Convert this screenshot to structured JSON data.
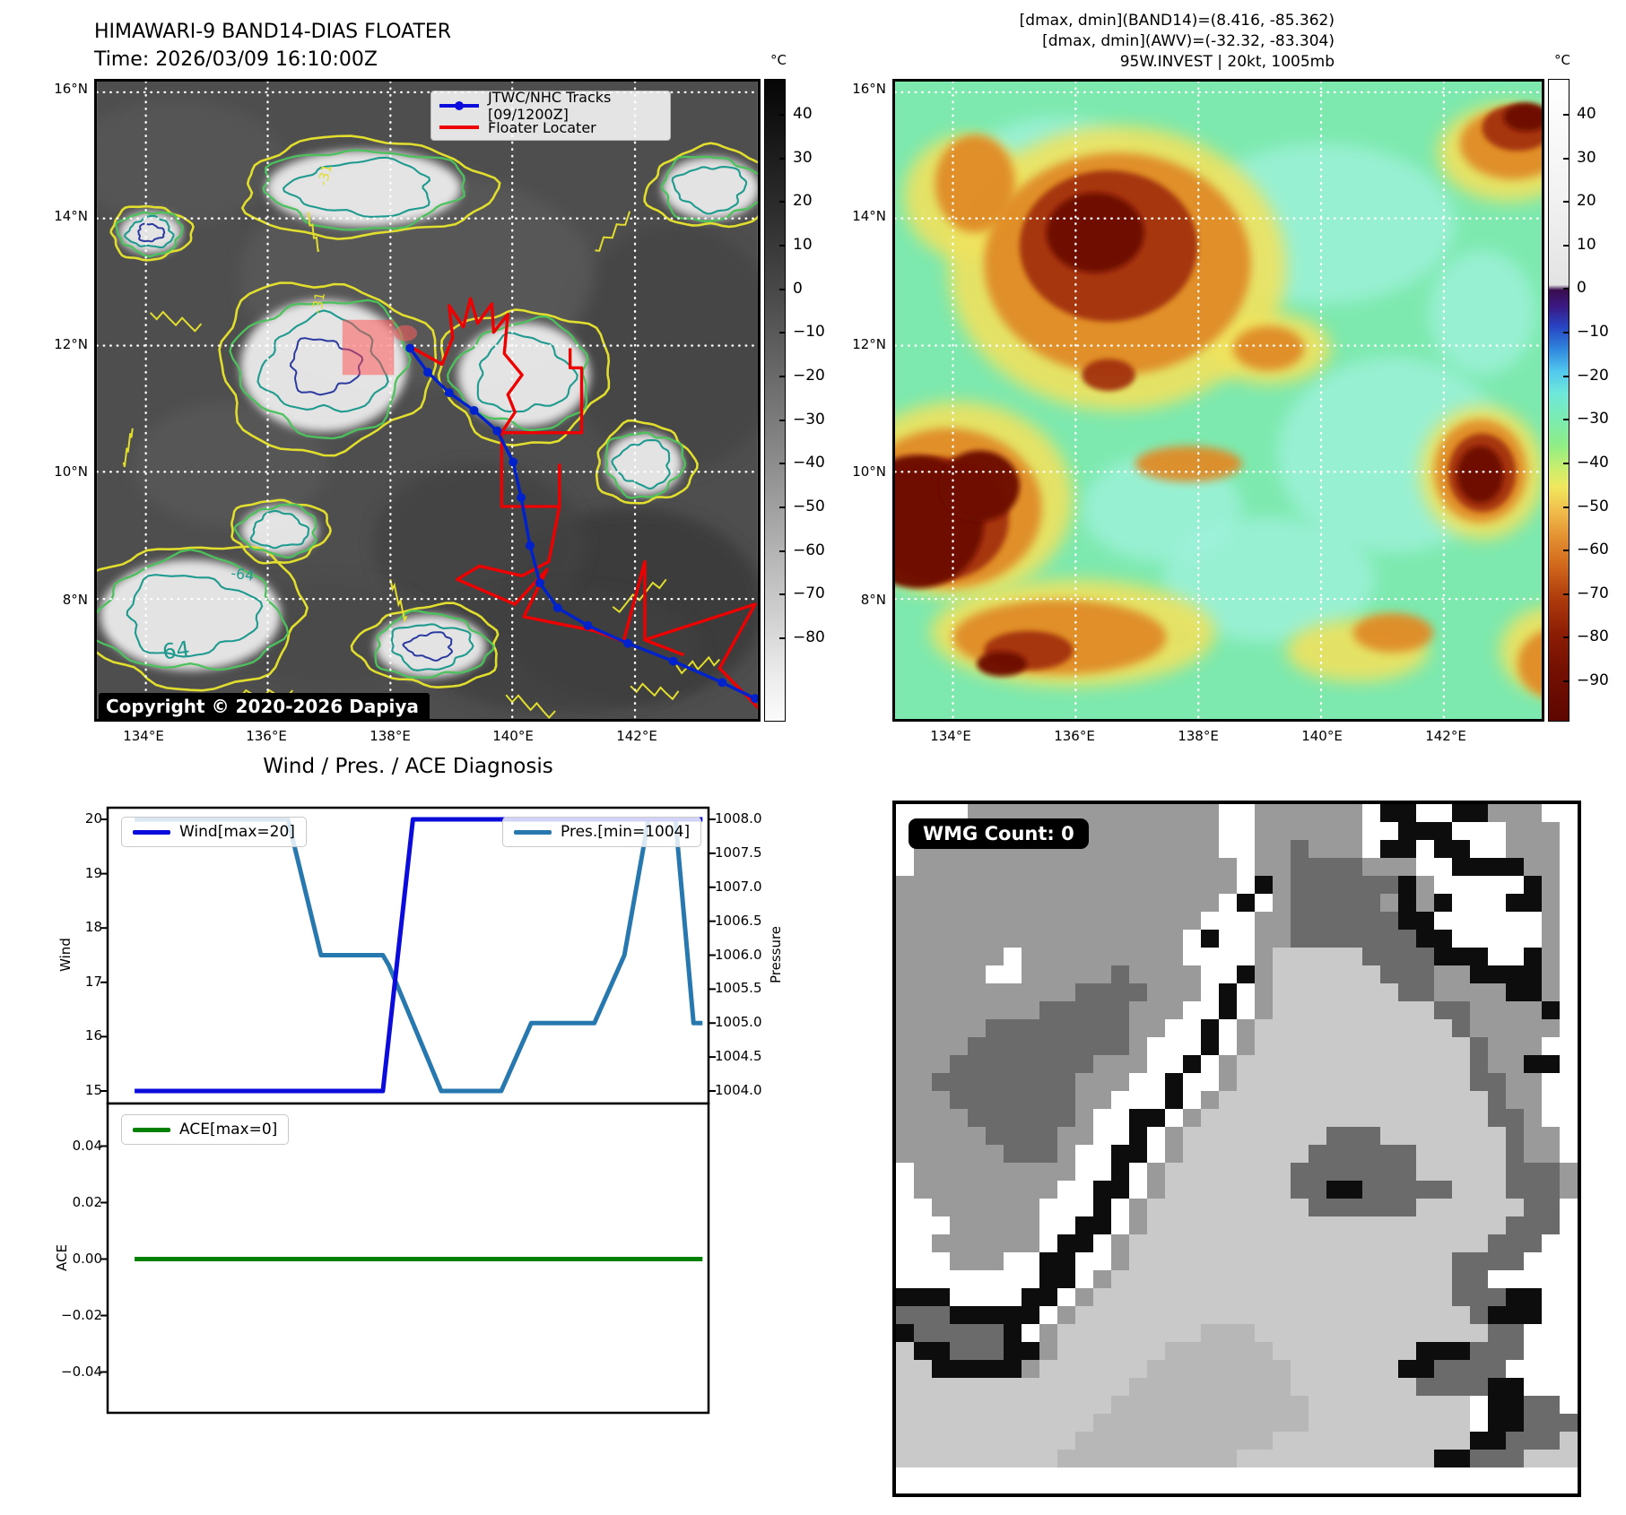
{
  "header": {
    "title": "HIMAWARI-9 BAND14-DIAS FLOATER",
    "time": "Time: 2026/03/09 16:10:00Z",
    "right_lines": [
      "[dmax, dmin](BAND14)=(8.416, -85.362)",
      "[dmax, dmin](AWV)=(-32.32, -83.304)",
      "95W.INVEST | 20kt, 1005mb"
    ]
  },
  "left_map": {
    "legend": [
      {
        "label": "JTWC/NHC Tracks [09/1200Z]",
        "color": "#0022cc",
        "marker": true
      },
      {
        "label": "Floater Locater",
        "color": "#ee0000",
        "marker": false
      }
    ],
    "copyright": "Copyright © 2020-2026 Dapiya",
    "lat_labels": [
      "16°N",
      "14°N",
      "12°N",
      "10°N",
      "8°N"
    ],
    "lon_labels": [
      "134°E",
      "136°E",
      "138°E",
      "140°E",
      "142°E"
    ],
    "contour_labels": [
      {
        "text": "-31"
      },
      {
        "text": "-31"
      },
      {
        "text": "-64"
      },
      {
        "text": "64"
      }
    ],
    "colorbar": {
      "unit": "°C",
      "tick_labels": [
        "40",
        "30",
        "20",
        "10",
        "0",
        "−10",
        "−20",
        "−30",
        "−40",
        "−50",
        "−60",
        "−70",
        "−80"
      ]
    }
  },
  "right_map": {
    "lat_labels": [
      "16°N",
      "14°N",
      "12°N",
      "10°N",
      "8°N"
    ],
    "lon_labels": [
      "134°E",
      "136°E",
      "138°E",
      "140°E",
      "142°E"
    ],
    "colorbar": {
      "unit": "°C",
      "tick_labels": [
        "40",
        "30",
        "20",
        "10",
        "0",
        "−10",
        "−20",
        "−30",
        "−40",
        "−50",
        "−60",
        "−70",
        "−80",
        "−90"
      ]
    }
  },
  "diagnosis": {
    "title": "Wind / Pres. / ACE Diagnosis",
    "wind_legend": "Wind[max=20]",
    "pres_legend": "Pres.[min=1004]",
    "ace_legend": "ACE[max=0]",
    "wind_axis": {
      "label": "Wind",
      "tick_values": [
        15,
        16,
        17,
        18,
        19,
        20
      ],
      "tick_labels": [
        "15",
        "16",
        "17",
        "18",
        "19",
        "20"
      ]
    },
    "pressure_axis": {
      "label": "Pressure",
      "tick_values": [
        1004,
        1004.5,
        1005,
        1005.5,
        1006,
        1006.5,
        1007,
        1007.5,
        1008
      ],
      "tick_labels": [
        "1004.0",
        "1004.5",
        "1005.0",
        "1005.5",
        "1006.0",
        "1006.5",
        "1007.0",
        "1007.5",
        "1008.0"
      ]
    },
    "ace_axis": {
      "label": "ACE",
      "tick_values": [
        -0.04,
        -0.02,
        0,
        0.02,
        0.04
      ],
      "tick_labels": [
        "−0.04",
        "−0.02",
        "0.00",
        "0.02",
        "0.04"
      ]
    }
  },
  "chart_data": [
    {
      "type": "line",
      "title": "Wind / Pres. / ACE Diagnosis",
      "ylabel": "Wind",
      "y2label": "Pressure",
      "ylim": [
        14.78,
        20.22
      ],
      "y2lim": [
        1003.82,
        1008.18
      ],
      "yticks": [
        15,
        16,
        17,
        18,
        19,
        20
      ],
      "y2ticks": [
        1004,
        1004.5,
        1005,
        1005.5,
        1006,
        1006.5,
        1007,
        1007.5,
        1008
      ],
      "grid": false,
      "legend_position": "top",
      "series": [
        {
          "name": "Wind[max=20]",
          "axis": "left",
          "color": "#0b0bdc",
          "points": [
            [
              0.045,
              15
            ],
            [
              0.458,
              15
            ],
            [
              0.508,
              20
            ],
            [
              0.99,
              20
            ]
          ]
        },
        {
          "name": "Pres.[min=1004]",
          "axis": "right",
          "color": "#2878b0",
          "points": [
            [
              0.045,
              1008
            ],
            [
              0.3,
              1008
            ],
            [
              0.355,
              1006
            ],
            [
              0.458,
              1006
            ],
            [
              0.468,
              1005.85
            ],
            [
              0.555,
              1004
            ],
            [
              0.655,
              1004
            ],
            [
              0.705,
              1005
            ],
            [
              0.81,
              1005
            ],
            [
              0.86,
              1006
            ],
            [
              0.9,
              1008
            ],
            [
              0.945,
              1008
            ],
            [
              0.975,
              1005
            ],
            [
              0.99,
              1005
            ]
          ]
        }
      ]
    },
    {
      "type": "line",
      "ylabel": "ACE",
      "ylim": [
        -0.0551,
        0.0551
      ],
      "yticks": [
        -0.04,
        -0.02,
        0,
        0.02,
        0.04
      ],
      "grid": false,
      "series": [
        {
          "name": "ACE[max=0]",
          "color": "#008000",
          "points": [
            [
              0.045,
              0
            ],
            [
              0.99,
              0
            ]
          ]
        }
      ]
    }
  ],
  "wmg": {
    "badge": "WMG Count: 0",
    "palette": {
      ".": "#ffffff",
      "g": "#9a9a9a",
      "d": "#6b6b6b",
      "k": "#0d0d0d",
      "l": "#c9c9c9",
      "m": "#b7b7b7",
      "s": "#888888",
      "e": "#dedede"
    },
    "rows": [
      "....gggggggggggggg..gggggg.kk..kkggg..",
      "..gggggggggggggggg..gggggg..kkk...ggg.",
      ".ggggggggggggggggg..ggdggg.kk.kk..ggg.",
      ".gggggggggggggggggg.ggddddggg..kkkkgg.",
      "ggggggggggggggggggg.kgddddddkg.....kg.",
      "gggggggggggggggggg.k.gdddddgkgk...kkg.",
      "ggggggggggggggggg...ggddddddkk......g.",
      "gggggggggggggggg.k..ggdddddddkk.....g.",
      "gggggg.ggggggggg....glllllddddkkk..kg.",
      "ggggg..gggggdgggg..kglllllldddggkkkkg.",
      "ggggggggggddddggg.k.glllllllddggggkkg.",
      "ggggggggdddddggg..k.glllllllllddggggk.",
      "gggggddddddddgg..k.gllllllllllldggggg.",
      "ggggdddddddddg...k.glllllllllllldggg..",
      "gggddddddddggg..k.gllllllllllllldggkk.",
      "ggddddddddggg..k..glllllllllllllddgg..",
      "gggdddddddgg...k.gllllllllllllllldgg..",
      "ggggddddddg..kk.gllllllllllllllllddg..",
      "gggggddddgg..k.glllllllldddllllllldgg.",
      "ggggggdddg..kk.glllllllddddddllllldgg.",
      ".ggggggggg..k.gllllllldddddddllllldddg",
      ".gggggggg..kk.glllllllddkkdddddllldddg",
      "..gggggg...k.glllllllllddddddlllllldd.",
      "...ggggg..kk.gllllllllllllllllllllddd.",
      "..gggggg.kk.gllllllllllllllllllllddd..",
      "...ggg..kk..glllllllllllllllllldddd...",
      "........kk.gllllllllllllllllllldd.....",
      "kkk....kk.glllllllllllllllllllldddkk..",
      "dddkkkkk.glllllllllllllllllllllldkkk..",
      "kdddddk.gllllllllmmmllllllllllllldd...",
      "lkkdddkkgllllllmmmmmmllllllllkkkddd...",
      "llkkkkkgllllllmmmmmmmmllllllkkdddd....",
      "lllllllllllllmmmmmmmmmlllllllddddkk...",
      "llllllllllllmmmmmmmmmmmlllllllll.kkdd.",
      "lllllllllllmmmmmmmmmmmmlllllllll.kkddd",
      "llllllllllmmmmmmmmmmmlllllllllllkkdddl",
      "lllllllllmmmmmmmmmmlllllllllllkkdddlll"
    ]
  },
  "colors": {
    "wind_line": "#0b0bdc",
    "pressure_line": "#2878b0",
    "ace_line": "#008000",
    "track_blue": "#0022cc",
    "floater_red": "#ee0000",
    "contour_yellow": "#e2de2e",
    "contour_green": "#4cc25c",
    "contour_teal": "#1e9a8e",
    "contour_navy": "#2b3a9f",
    "highlight_pink": "rgba(255,75,75,0.5)"
  }
}
